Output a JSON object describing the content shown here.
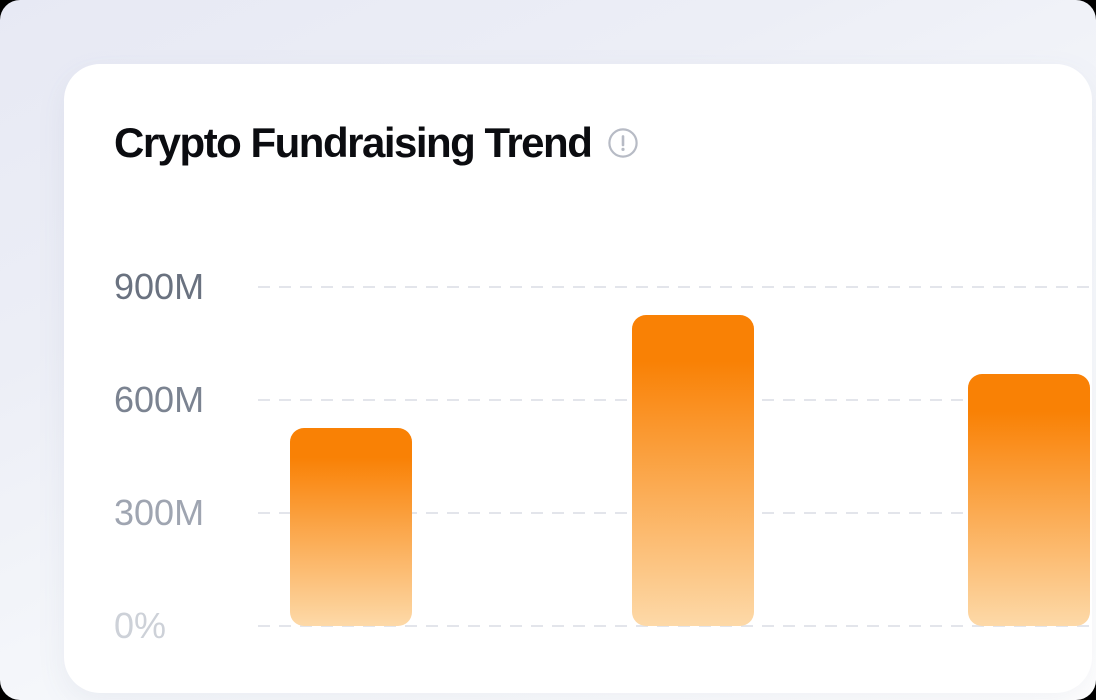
{
  "card": {
    "title": "Crypto Fundraising Trend"
  },
  "icons": {
    "header_info": "exclamation-circle",
    "icon_color": "#b7bbc5"
  },
  "chart_data": {
    "type": "bar",
    "title": "Crypto Fundraising Trend",
    "xlabel": "",
    "ylabel": "",
    "ylim": [
      0,
      900
    ],
    "y_ticks": [
      {
        "label": "900M",
        "value": 900,
        "color": "#6a7280"
      },
      {
        "label": "600M",
        "value": 600,
        "color": "#7b8391"
      },
      {
        "label": "300M",
        "value": 300,
        "color": "#9fa5b1"
      },
      {
        "label": "0%",
        "value": 0,
        "color": "#cdd1d8"
      }
    ],
    "values": [
      525,
      825,
      670
    ],
    "values_unit": "M",
    "x_tick_labels_visible": false,
    "legend": "none",
    "grid": "dashed-horizontal",
    "colors": {
      "bar_gradient_top": "#f98105",
      "bar_gradient_bottom": "#fdd9a8",
      "gridline": "#e3e5eb",
      "title_text": "#0b0c10",
      "card_background": "#ffffff",
      "page_background_top": "#e7e9f4",
      "page_background_bottom": "#ffffff"
    }
  }
}
